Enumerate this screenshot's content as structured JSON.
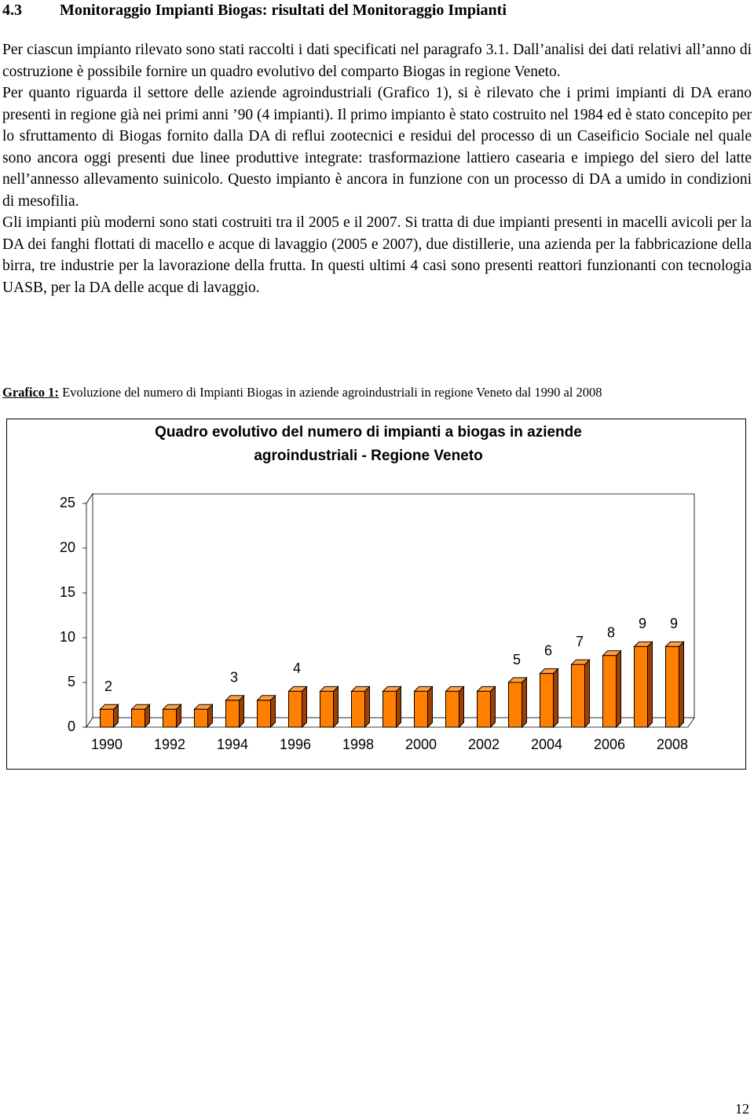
{
  "section": {
    "number": "4.3",
    "title": "Monitoraggio Impianti Biogas: risultati del Monitoraggio Impianti"
  },
  "paragraphs": [
    "Per ciascun impianto rilevato sono stati raccolti i dati specificati nel paragrafo 3.1. Dall’analisi dei dati relativi all’anno di costruzione è possibile fornire un quadro evolutivo del comparto Biogas in regione Veneto.",
    "Per quanto riguarda il settore delle aziende agroindustriali (Grafico 1), si è rilevato che i primi impianti di DA erano presenti in regione già nei primi anni ’90 (4 impianti). Il primo impianto è stato costruito nel 1984 ed è stato concepito per lo sfruttamento di Biogas fornito dalla DA di reflui zootecnici e residui del processo di un Caseificio Sociale nel quale sono ancora oggi presenti due linee produttive integrate: trasformazione lattiero casearia e impiego del siero del latte nell’annesso allevamento suinicolo. Questo impianto è ancora in funzione con un processo di DA a umido in condizioni di mesofilia.",
    "Gli impianti più moderni sono stati costruiti tra il 2005 e il 2007. Si tratta di due impianti presenti in macelli avicoli per la DA dei fanghi flottati di macello e acque di lavaggio (2005 e 2007), due distillerie, una azienda per la fabbricazione della birra, tre industrie per la lavorazione della frutta. In questi ultimi 4 casi sono presenti reattori funzionanti con tecnologia UASB, per la DA delle acque di lavaggio."
  ],
  "caption": {
    "label": "Grafico 1:",
    "text": "Evoluzione del numero di Impianti Biogas in aziende agroindustriali in regione Veneto dal 1990 al 2008"
  },
  "chart_data": {
    "type": "bar3d",
    "title": "Quadro evolutivo del numero di impianti a biogas in aziende agroindustriali - Regione Veneto",
    "x": [
      1990,
      1991,
      1992,
      1993,
      1994,
      1995,
      1996,
      1997,
      1998,
      1999,
      2000,
      2001,
      2002,
      2003,
      2004,
      2005,
      2006,
      2007,
      2008
    ],
    "xticks": [
      1990,
      1992,
      1994,
      1996,
      1998,
      2000,
      2002,
      2004,
      2006,
      2008
    ],
    "values": [
      2,
      2,
      2,
      2,
      3,
      3,
      4,
      4,
      4,
      4,
      4,
      4,
      4,
      5,
      6,
      7,
      8,
      9,
      9
    ],
    "value_labels": [
      "2",
      null,
      null,
      null,
      "3",
      null,
      "4",
      null,
      null,
      null,
      null,
      null,
      null,
      "5",
      "6",
      "7",
      "8",
      "9",
      "9"
    ],
    "color": "#ff8000",
    "ylim": [
      0,
      25
    ],
    "yticks": [
      0,
      5,
      10,
      15,
      20,
      25
    ]
  },
  "page_number": "12"
}
